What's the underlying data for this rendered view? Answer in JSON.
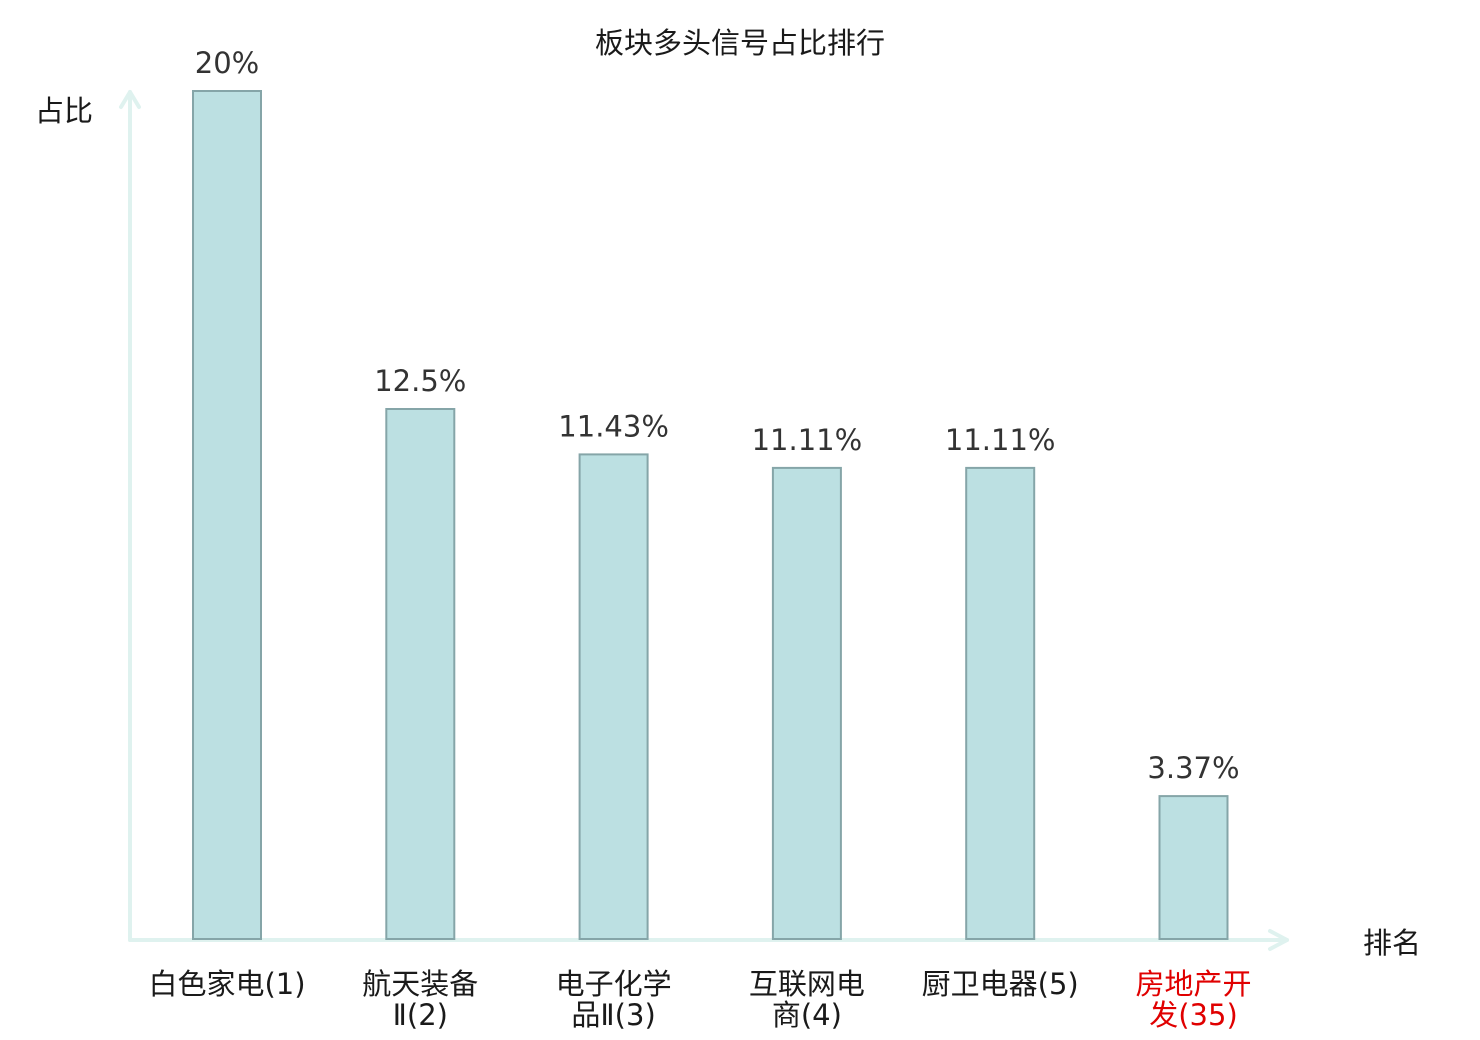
{
  "chart_data": {
    "type": "bar",
    "title": "板块多头信号占比排行",
    "ylabel": "占比",
    "xlabel": "排名",
    "categories": [
      {
        "lines": [
          "白色家电(1)"
        ],
        "highlight": false
      },
      {
        "lines": [
          "航天装备",
          "Ⅱ(2)"
        ],
        "highlight": false
      },
      {
        "lines": [
          "电子化学",
          "品Ⅱ(3)"
        ],
        "highlight": false
      },
      {
        "lines": [
          "互联网电",
          "商(4)"
        ],
        "highlight": false
      },
      {
        "lines": [
          "厨卫电器(5)"
        ],
        "highlight": false
      },
      {
        "lines": [
          "房地产开",
          "发(35)"
        ],
        "highlight": true
      }
    ],
    "values": [
      20,
      12.5,
      11.43,
      11.11,
      11.11,
      3.37
    ],
    "value_labels": [
      "20%",
      "12.5%",
      "11.43%",
      "11.11%",
      "11.11%",
      "3.37%"
    ],
    "ylim": [
      0,
      20
    ],
    "grid": false,
    "colors": {
      "bar_fill": "#bce0e2",
      "bar_stroke": "#85a5a8",
      "axis": "#dff2ef",
      "highlight_text": "#e00000",
      "normal_text": "#1a1a1a"
    }
  }
}
